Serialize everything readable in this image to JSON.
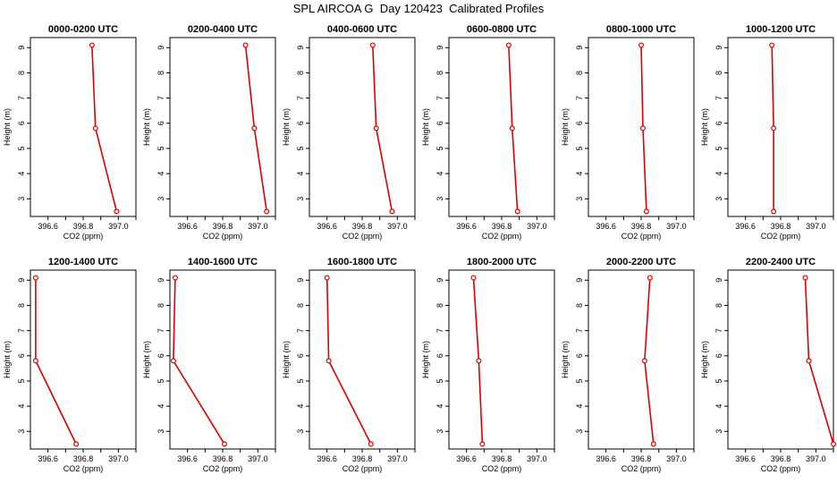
{
  "title": "SPL AIRCOA G  Day 120423  Calibrated Profiles",
  "colors": {
    "line": "#dd0000",
    "frame": "#000000"
  },
  "chart_data": [
    {
      "type": "line",
      "title": "0000-0200 UTC",
      "xlabel": "CO2 (ppm)",
      "ylabel": "Height (m)",
      "xlim": [
        396.5,
        397.1
      ],
      "ylim": [
        2.3,
        9.4
      ],
      "xticks": [
        "396.6",
        "396.8",
        "397.0"
      ],
      "yticks": [
        "3",
        "4",
        "5",
        "6",
        "7",
        "8",
        "9"
      ],
      "x": [
        396.99,
        396.87,
        396.85
      ],
      "y": [
        2.5,
        5.8,
        9.1
      ]
    },
    {
      "type": "line",
      "title": "0200-0400 UTC",
      "xlabel": "CO2 (ppm)",
      "ylabel": "Height (m)",
      "xlim": [
        396.5,
        397.1
      ],
      "ylim": [
        2.3,
        9.4
      ],
      "xticks": [
        "396.6",
        "396.8",
        "397.0"
      ],
      "yticks": [
        "3",
        "4",
        "5",
        "6",
        "7",
        "8",
        "9"
      ],
      "x": [
        397.05,
        396.98,
        396.93
      ],
      "y": [
        2.5,
        5.8,
        9.1
      ]
    },
    {
      "type": "line",
      "title": "0400-0600 UTC",
      "xlabel": "CO2 (ppm)",
      "ylabel": "Height (m)",
      "xlim": [
        396.5,
        397.1
      ],
      "ylim": [
        2.3,
        9.4
      ],
      "xticks": [
        "396.6",
        "396.8",
        "397.0"
      ],
      "yticks": [
        "3",
        "4",
        "5",
        "6",
        "7",
        "8",
        "9"
      ],
      "x": [
        396.97,
        396.88,
        396.86
      ],
      "y": [
        2.5,
        5.8,
        9.1
      ]
    },
    {
      "type": "line",
      "title": "0600-0800 UTC",
      "xlabel": "CO2 (ppm)",
      "ylabel": "Height (m)",
      "xlim": [
        396.5,
        397.1
      ],
      "ylim": [
        2.3,
        9.4
      ],
      "xticks": [
        "396.6",
        "396.8",
        "397.0"
      ],
      "yticks": [
        "3",
        "4",
        "5",
        "6",
        "7",
        "8",
        "9"
      ],
      "x": [
        396.89,
        396.86,
        396.84
      ],
      "y": [
        2.5,
        5.8,
        9.1
      ]
    },
    {
      "type": "line",
      "title": "0800-1000 UTC",
      "xlabel": "CO2 (ppm)",
      "ylabel": "Height (m)",
      "xlim": [
        396.5,
        397.1
      ],
      "ylim": [
        2.3,
        9.4
      ],
      "xticks": [
        "396.6",
        "396.8",
        "397.0"
      ],
      "yticks": [
        "3",
        "4",
        "5",
        "6",
        "7",
        "8",
        "9"
      ],
      "x": [
        396.83,
        396.81,
        396.8
      ],
      "y": [
        2.5,
        5.8,
        9.1
      ]
    },
    {
      "type": "line",
      "title": "1000-1200 UTC",
      "xlabel": "CO2 (ppm)",
      "ylabel": "Height (m)",
      "xlim": [
        396.5,
        397.1
      ],
      "ylim": [
        2.3,
        9.4
      ],
      "xticks": [
        "396.6",
        "396.8",
        "397.0"
      ],
      "yticks": [
        "3",
        "4",
        "5",
        "6",
        "7",
        "8",
        "9"
      ],
      "x": [
        396.76,
        396.76,
        396.75
      ],
      "y": [
        2.5,
        5.8,
        9.1
      ]
    },
    {
      "type": "line",
      "title": "1200-1400 UTC",
      "xlabel": "CO2 (ppm)",
      "ylabel": "Height (m)",
      "xlim": [
        396.5,
        397.1
      ],
      "ylim": [
        2.3,
        9.4
      ],
      "xticks": [
        "396.6",
        "396.8",
        "397.0"
      ],
      "yticks": [
        "3",
        "4",
        "5",
        "6",
        "7",
        "8",
        "9"
      ],
      "x": [
        396.76,
        396.53,
        396.53
      ],
      "y": [
        2.5,
        5.8,
        9.1
      ]
    },
    {
      "type": "line",
      "title": "1400-1600 UTC",
      "xlabel": "CO2 (ppm)",
      "ylabel": "Height (m)",
      "xlim": [
        396.5,
        397.1
      ],
      "ylim": [
        2.3,
        9.4
      ],
      "xticks": [
        "396.6",
        "396.8",
        "397.0"
      ],
      "yticks": [
        "3",
        "4",
        "5",
        "6",
        "7",
        "8",
        "9"
      ],
      "x": [
        396.81,
        396.52,
        396.53
      ],
      "y": [
        2.5,
        5.8,
        9.1
      ]
    },
    {
      "type": "line",
      "title": "1600-1800 UTC",
      "xlabel": "CO2 (ppm)",
      "ylabel": "Height (m)",
      "xlim": [
        396.5,
        397.1
      ],
      "ylim": [
        2.3,
        9.4
      ],
      "xticks": [
        "396.6",
        "396.8",
        "397.0"
      ],
      "yticks": [
        "3",
        "4",
        "5",
        "6",
        "7",
        "8",
        "9"
      ],
      "x": [
        396.85,
        396.61,
        396.6
      ],
      "y": [
        2.5,
        5.8,
        9.1
      ]
    },
    {
      "type": "line",
      "title": "1800-2000 UTC",
      "xlabel": "CO2 (ppm)",
      "ylabel": "Height (m)",
      "xlim": [
        396.5,
        397.1
      ],
      "ylim": [
        2.3,
        9.4
      ],
      "xticks": [
        "396.6",
        "396.8",
        "397.0"
      ],
      "yticks": [
        "3",
        "4",
        "5",
        "6",
        "7",
        "8",
        "9"
      ],
      "x": [
        396.69,
        396.67,
        396.64
      ],
      "y": [
        2.5,
        5.8,
        9.1
      ]
    },
    {
      "type": "line",
      "title": "2000-2200 UTC",
      "xlabel": "CO2 (ppm)",
      "ylabel": "Height (m)",
      "xlim": [
        396.5,
        397.1
      ],
      "ylim": [
        2.3,
        9.4
      ],
      "xticks": [
        "396.6",
        "396.8",
        "397.0"
      ],
      "yticks": [
        "3",
        "4",
        "5",
        "6",
        "7",
        "8",
        "9"
      ],
      "x": [
        396.87,
        396.82,
        396.85
      ],
      "y": [
        2.5,
        5.8,
        9.1
      ]
    },
    {
      "type": "line",
      "title": "2200-2400 UTC",
      "xlabel": "CO2 (ppm)",
      "ylabel": "Height (m)",
      "xlim": [
        396.5,
        397.1
      ],
      "ylim": [
        2.3,
        9.4
      ],
      "xticks": [
        "396.6",
        "396.8",
        "397.0"
      ],
      "yticks": [
        "3",
        "4",
        "5",
        "6",
        "7",
        "8",
        "9"
      ],
      "x": [
        397.1,
        396.96,
        396.94
      ],
      "y": [
        2.5,
        5.8,
        9.1
      ]
    }
  ]
}
